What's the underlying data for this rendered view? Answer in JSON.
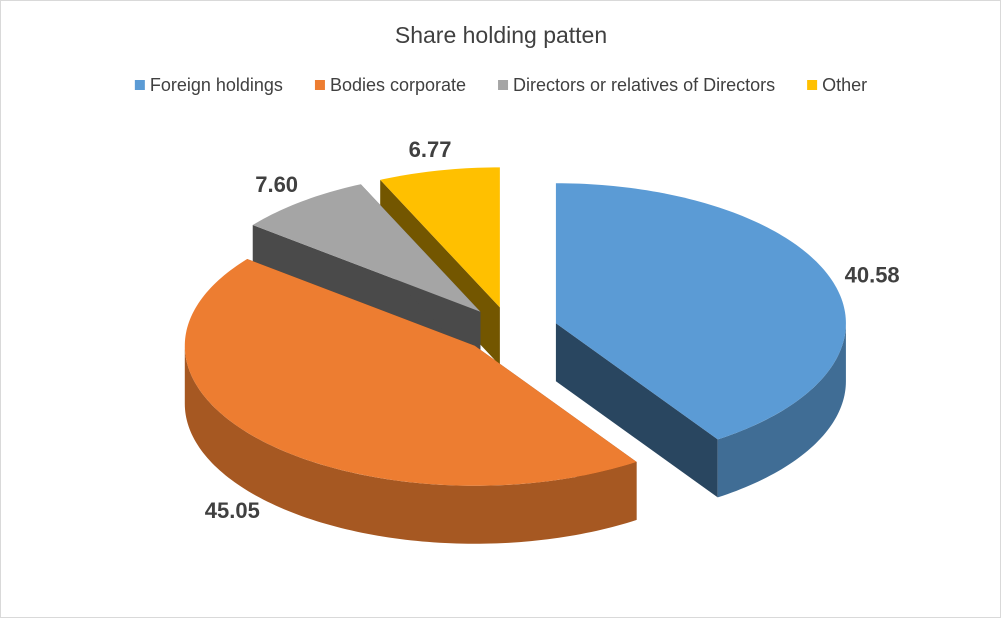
{
  "chart_data": {
    "type": "pie3d",
    "title": "Share holding patten",
    "categories": [
      "Foreign holdings",
      "Bodies corporate",
      "Directors or relatives of Directors",
      "Other"
    ],
    "values": [
      40.58,
      45.05,
      7.6,
      6.77
    ],
    "value_labels": [
      "40.58",
      "45.05",
      "7.60",
      "6.77"
    ],
    "colors": [
      "#5b9bd5",
      "#ed7d31",
      "#a5a5a5",
      "#ffc000"
    ],
    "legend": "top"
  }
}
